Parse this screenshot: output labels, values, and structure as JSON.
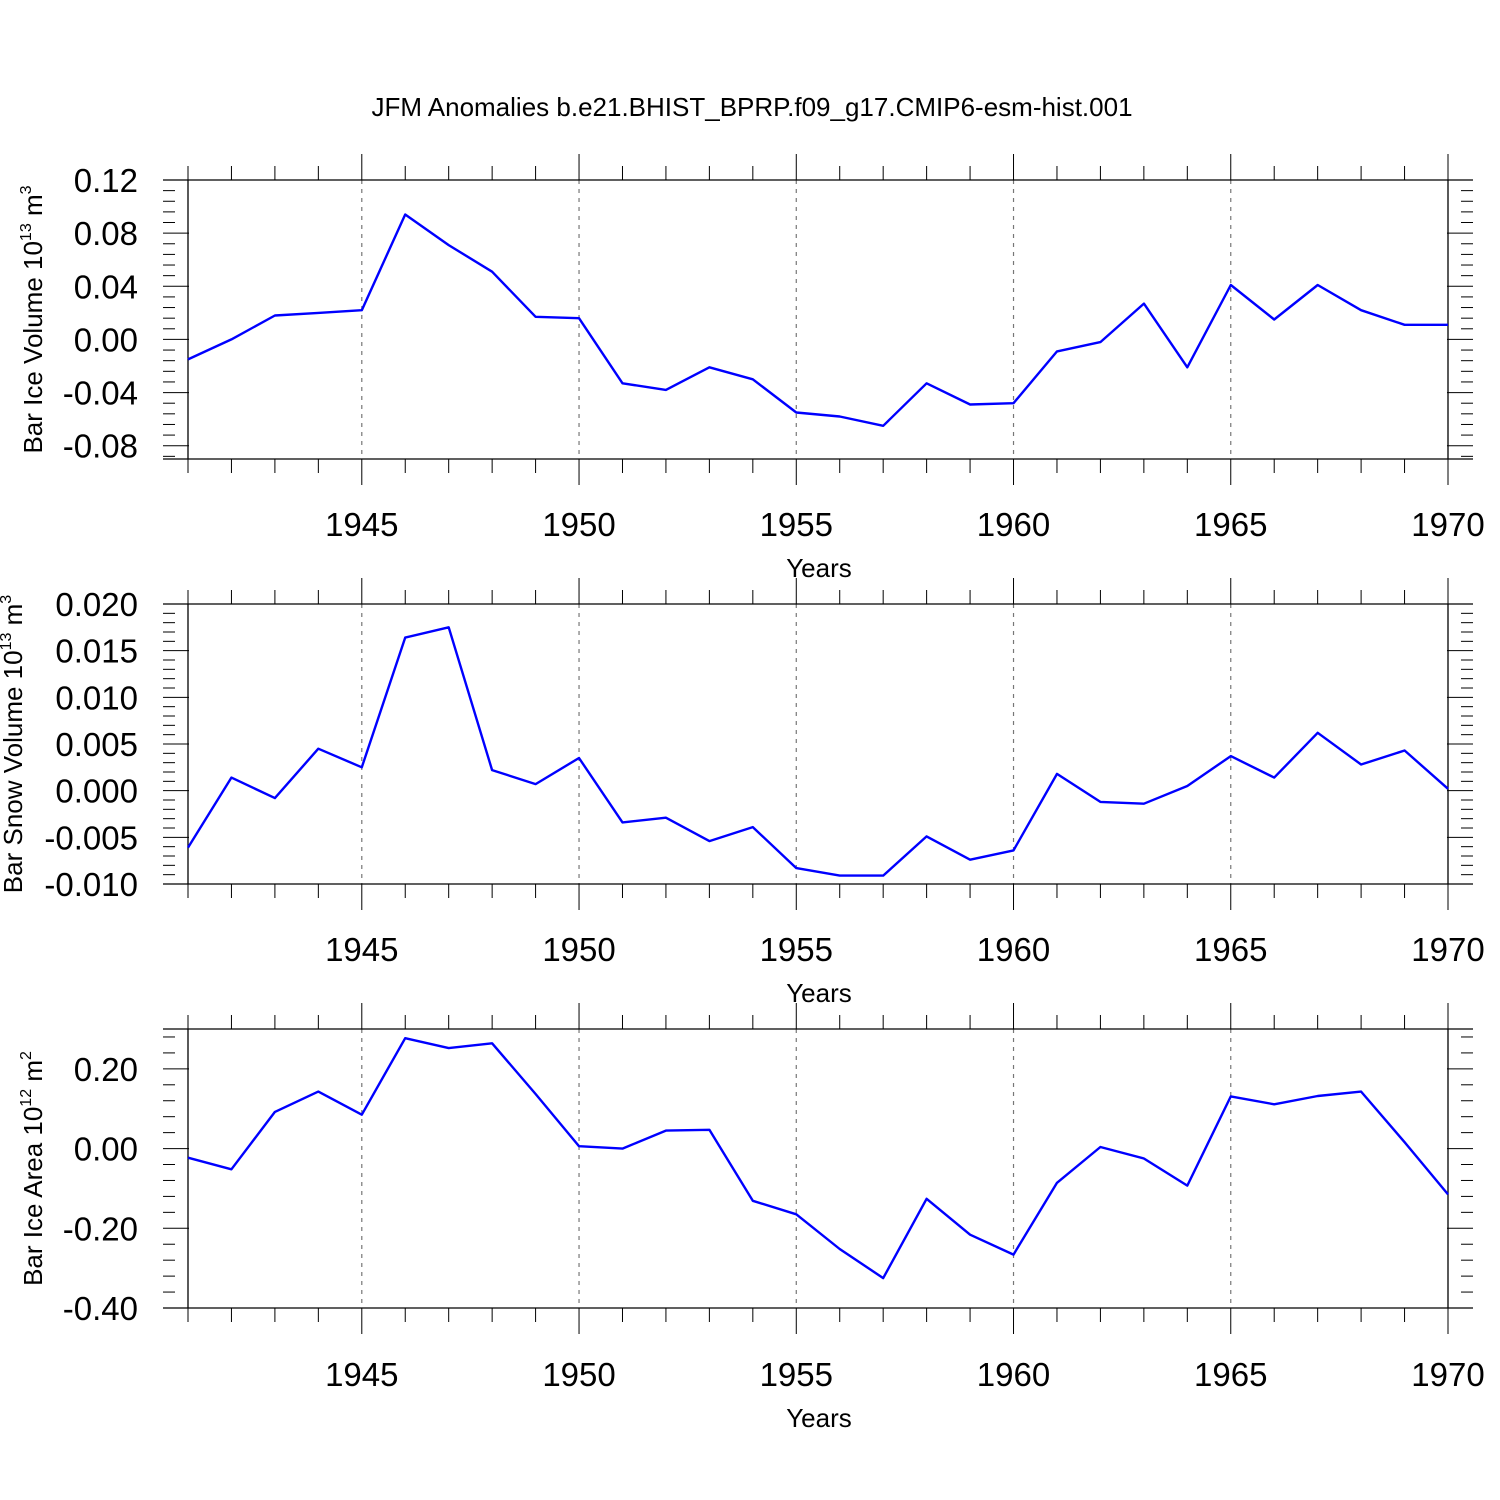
{
  "title": "JFM Anomalies b.e21.BHIST_BPRP.f09_g17.CMIP6-esm-hist.001",
  "line_color": "#0000ff",
  "chart_data": [
    {
      "type": "line",
      "title": "",
      "xlabel": "Years",
      "ylabel": {
        "text": "Bar Ice Volume 10",
        "exponent": "13",
        "unit": " m",
        "unit_exponent": "3"
      },
      "xlim": [
        1941,
        1970
      ],
      "ylim": [
        -0.09,
        0.12
      ],
      "x_ticks": [
        1945,
        1950,
        1955,
        1960,
        1965,
        1970
      ],
      "y_ticks": [
        -0.08,
        -0.04,
        0.0,
        0.04,
        0.08,
        0.12
      ],
      "y_tick_labels": [
        "-0.08",
        "-0.04",
        "0.00",
        "0.04",
        "0.08",
        "0.12"
      ],
      "x": [
        1941,
        1942,
        1943,
        1944,
        1945,
        1946,
        1947,
        1948,
        1949,
        1950,
        1951,
        1952,
        1953,
        1954,
        1955,
        1956,
        1957,
        1958,
        1959,
        1960,
        1961,
        1962,
        1963,
        1964,
        1965,
        1966,
        1967,
        1968,
        1969,
        1970
      ],
      "series": [
        {
          "values": [
            -0.015,
            0.0,
            0.018,
            0.02,
            0.022,
            0.094,
            0.071,
            0.051,
            0.017,
            0.016,
            -0.033,
            -0.038,
            -0.021,
            -0.03,
            -0.055,
            -0.058,
            -0.065,
            -0.033,
            -0.049,
            -0.048,
            -0.009,
            -0.002,
            0.027,
            -0.021,
            0.041,
            0.015,
            0.041,
            0.022,
            0.011,
            0.011
          ]
        }
      ]
    },
    {
      "type": "line",
      "title": "",
      "xlabel": "Years",
      "ylabel": {
        "text": "Bar Snow Volume 10",
        "exponent": "13",
        "unit": " m",
        "unit_exponent": "3"
      },
      "xlim": [
        1941,
        1970
      ],
      "ylim": [
        -0.01,
        0.02
      ],
      "x_ticks": [
        1945,
        1950,
        1955,
        1960,
        1965,
        1970
      ],
      "y_ticks": [
        -0.01,
        -0.005,
        0.0,
        0.005,
        0.01,
        0.015,
        0.02
      ],
      "y_tick_labels": [
        "-0.010",
        "-0.005",
        "0.000",
        "0.005",
        "0.010",
        "0.015",
        "0.020"
      ],
      "x": [
        1941,
        1942,
        1943,
        1944,
        1945,
        1946,
        1947,
        1948,
        1949,
        1950,
        1951,
        1952,
        1953,
        1954,
        1955,
        1956,
        1957,
        1958,
        1959,
        1960,
        1961,
        1962,
        1963,
        1964,
        1965,
        1966,
        1967,
        1968,
        1969,
        1970
      ],
      "series": [
        {
          "values": [
            -0.0061,
            0.0014,
            -0.0008,
            0.0045,
            0.0025,
            0.0164,
            0.0175,
            0.0022,
            0.0007,
            0.0035,
            -0.0034,
            -0.0029,
            -0.0054,
            -0.0039,
            -0.0083,
            -0.0091,
            -0.0091,
            -0.0049,
            -0.0074,
            -0.0064,
            0.0018,
            -0.0012,
            -0.0014,
            0.0005,
            0.0037,
            0.0014,
            0.0062,
            0.0028,
            0.0043,
            0.0002
          ]
        }
      ]
    },
    {
      "type": "line",
      "title": "",
      "xlabel": "Years",
      "ylabel": {
        "text": "Bar Ice Area 10",
        "exponent": "12",
        "unit": " m",
        "unit_exponent": "2"
      },
      "xlim": [
        1941,
        1970
      ],
      "ylim": [
        -0.4,
        0.3
      ],
      "x_ticks": [
        1945,
        1950,
        1955,
        1960,
        1965,
        1970
      ],
      "y_ticks": [
        -0.4,
        -0.2,
        0.0,
        0.2
      ],
      "y_tick_labels": [
        "-0.40",
        "-0.20",
        "0.00",
        "0.20"
      ],
      "x": [
        1941,
        1942,
        1943,
        1944,
        1945,
        1946,
        1947,
        1948,
        1949,
        1950,
        1951,
        1952,
        1953,
        1954,
        1955,
        1956,
        1957,
        1958,
        1959,
        1960,
        1961,
        1962,
        1963,
        1964,
        1965,
        1966,
        1967,
        1968,
        1969,
        1970
      ],
      "series": [
        {
          "values": [
            -0.023,
            -0.052,
            0.092,
            0.143,
            0.085,
            0.277,
            0.252,
            0.264,
            0.137,
            0.006,
            0.0,
            0.045,
            0.047,
            -0.131,
            -0.165,
            -0.252,
            -0.325,
            -0.126,
            -0.216,
            -0.266,
            -0.086,
            0.004,
            -0.025,
            -0.093,
            0.131,
            0.111,
            0.132,
            0.143,
            0.016,
            -0.115
          ]
        }
      ]
    }
  ]
}
